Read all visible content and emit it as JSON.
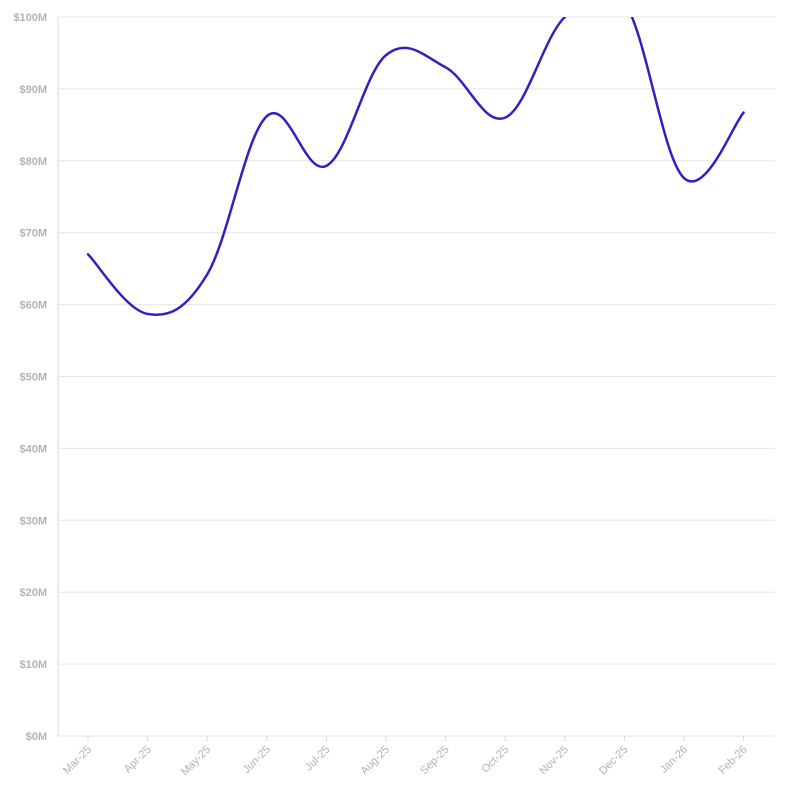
{
  "chart_data": {
    "type": "line",
    "title": "",
    "xlabel": "",
    "ylabel": "",
    "categories": [
      "Mar-25",
      "Apr-25",
      "May-25",
      "Jun-25",
      "Jul-25",
      "Aug-25",
      "Sep-25",
      "Oct-25",
      "Nov-25",
      "Dec-25",
      "Jan-26",
      "Feb-26"
    ],
    "series": [
      {
        "values": [
          67,
          58.7,
          64.2,
          86.2,
          79.3,
          94.7,
          93,
          86,
          100,
          102,
          77.6,
          86.7
        ]
      }
    ],
    "ylim": [
      0,
      100
    ],
    "yticks": [
      0,
      10,
      20,
      30,
      40,
      50,
      60,
      70,
      80,
      90,
      100
    ],
    "ytick_labels": [
      "$0M",
      "$10M",
      "$20M",
      "$30M",
      "$40M",
      "$50M",
      "$60M",
      "$70M",
      "$80M",
      "$90M",
      "$100M"
    ],
    "grid": true,
    "line_color": "#2d22c4"
  }
}
